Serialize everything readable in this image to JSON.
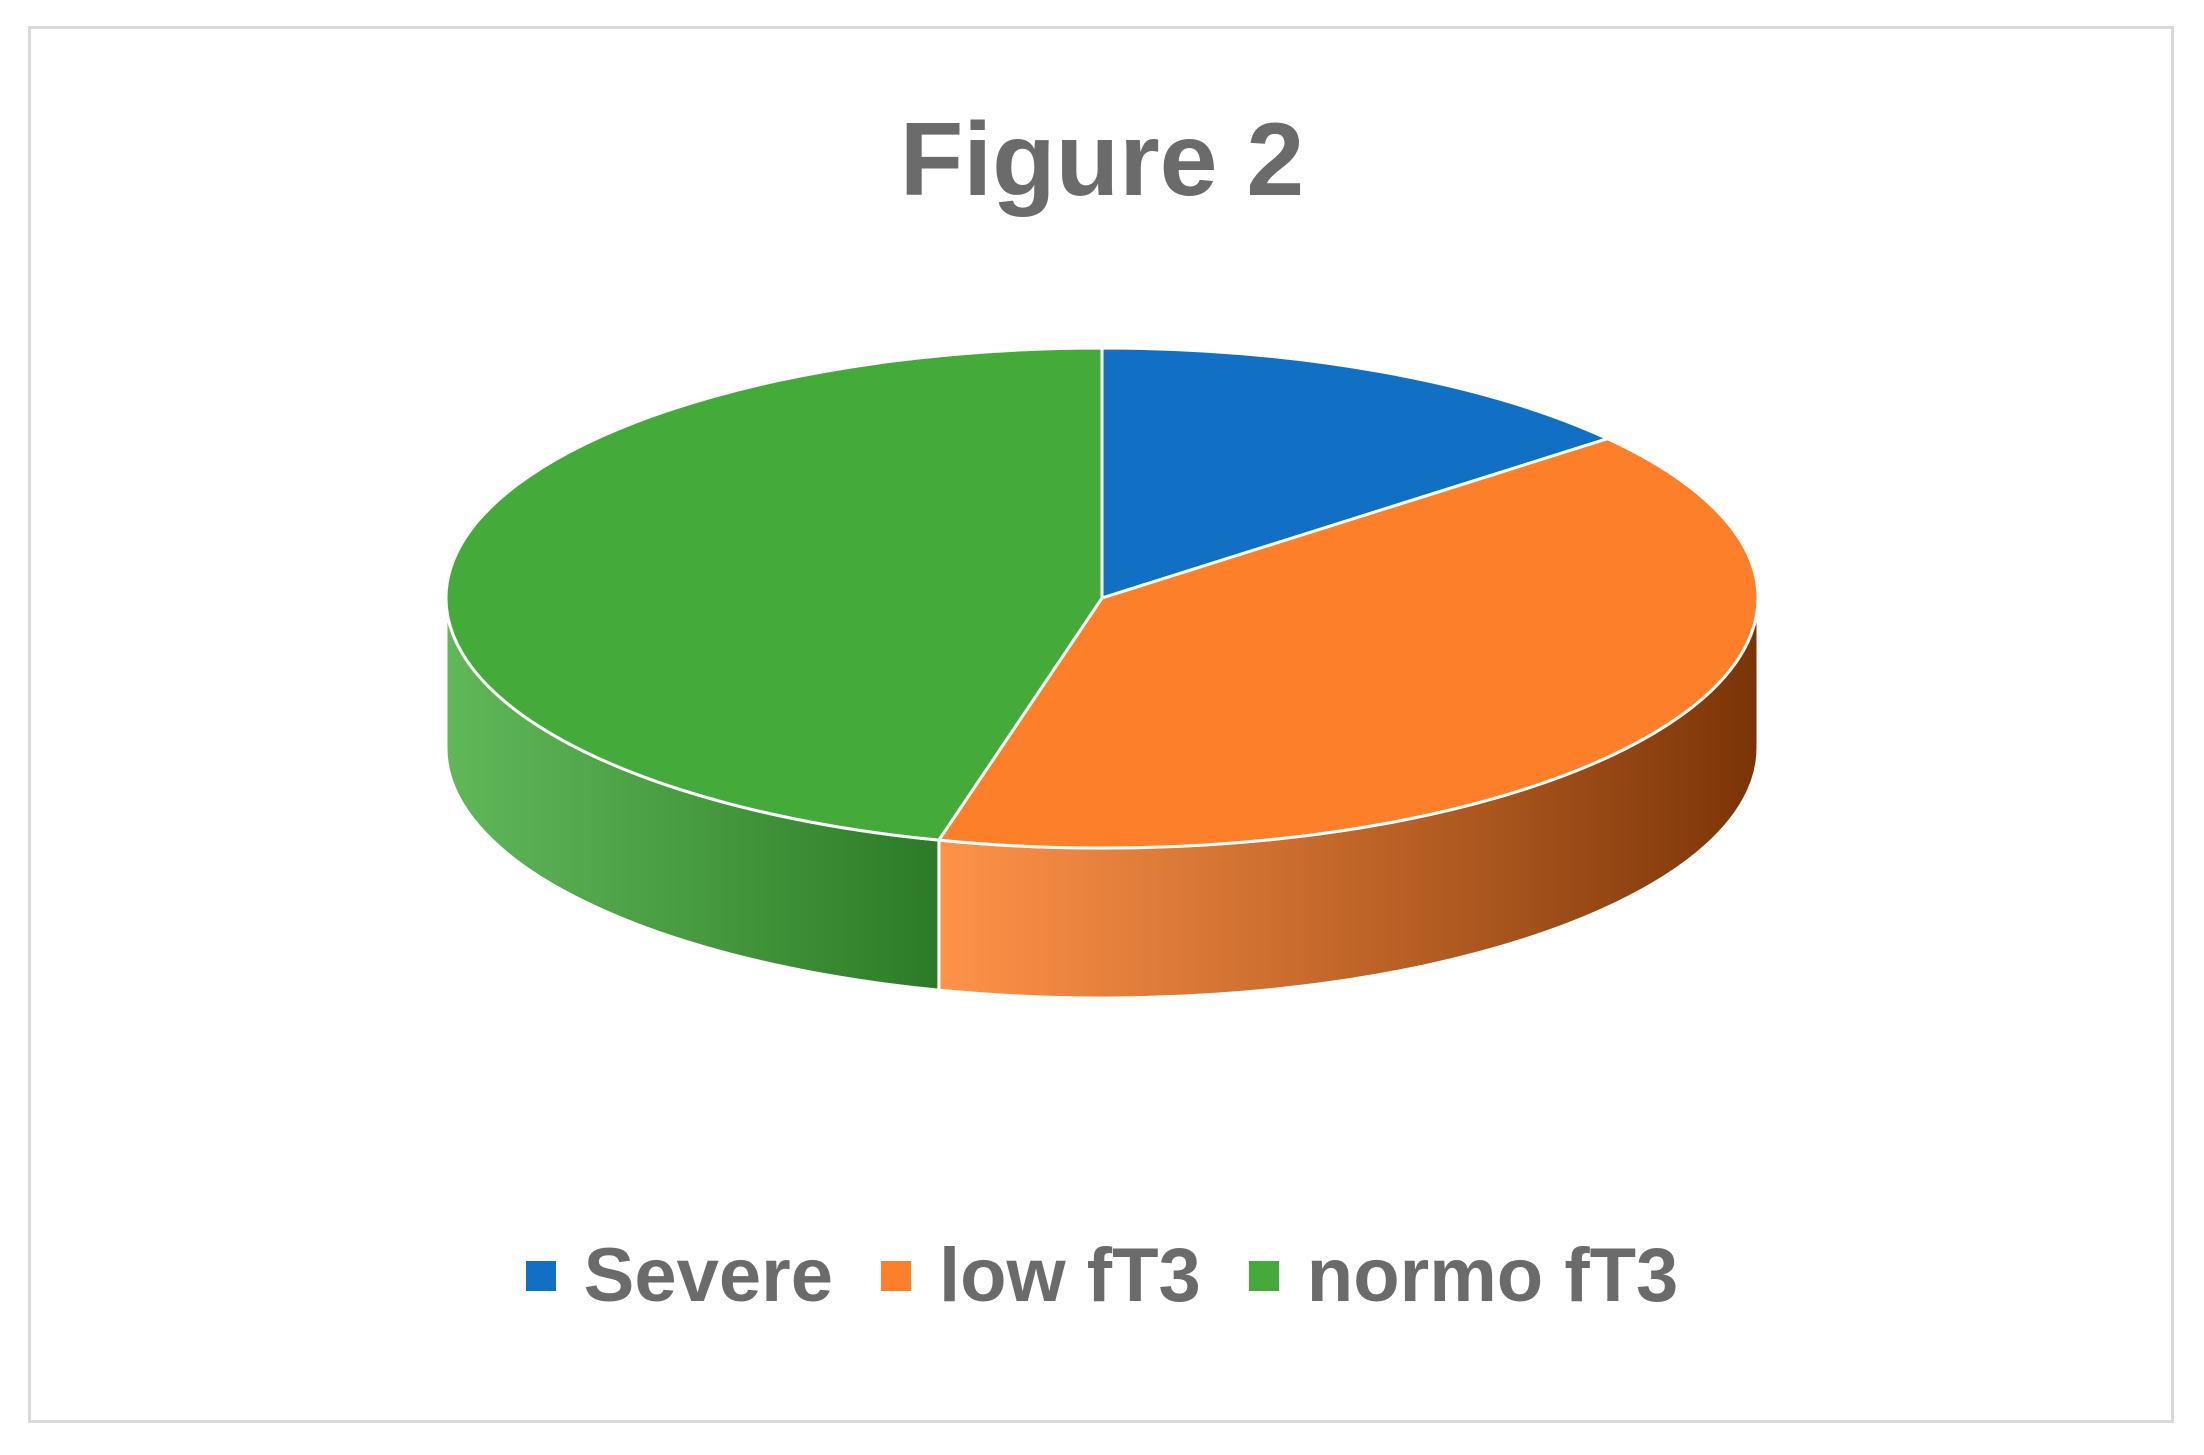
{
  "chart_data": {
    "type": "pie",
    "title": "Figure 2",
    "style": "3d",
    "legend_position": "bottom",
    "categories": [
      "Severe",
      "low fT3",
      "normo fT3"
    ],
    "values": [
      14,
      40,
      46
    ],
    "colors": [
      "#1170c4",
      "#fe7f29",
      "#44ab3b"
    ],
    "side_colors": [
      "#0b4a86",
      "#7a3407",
      "#2c7a26"
    ]
  }
}
